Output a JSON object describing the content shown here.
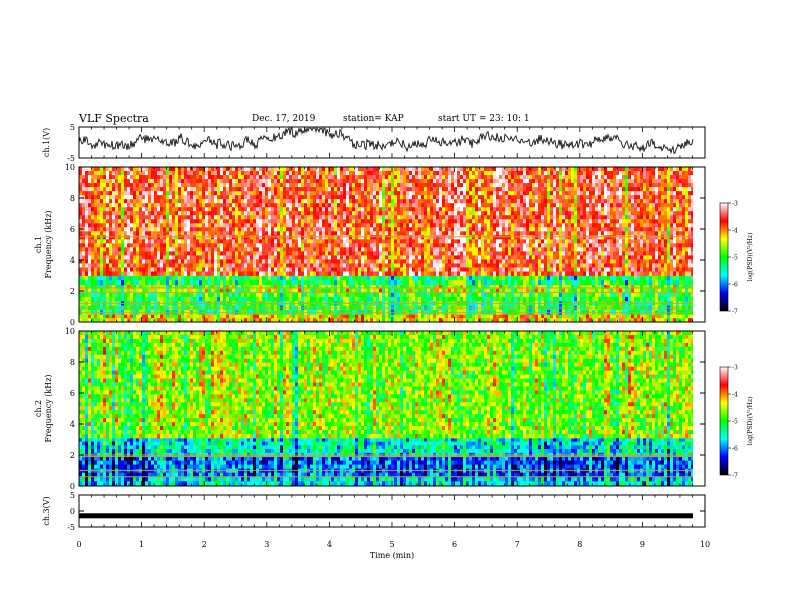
{
  "header": {
    "title": "VLF Spectra",
    "date": "Dec. 17, 2019",
    "station": "station= KAP",
    "start": "start  UT  =   23: 10: 1"
  },
  "colors": {
    "waveform": "#111111",
    "colormap": [
      "#000000",
      "#0000ff",
      "#00ffff",
      "#00ff00",
      "#ffff00",
      "#ff0000",
      "#ffffff"
    ]
  },
  "chart_data": [
    {
      "type": "line",
      "panel": "ch1-waveform",
      "ylabel": "ch.1(V)",
      "ylim": [
        -5,
        5
      ],
      "yticks": [
        "5",
        "-5"
      ],
      "xlim": [
        0,
        10
      ],
      "mean": 0.5,
      "amplitude_range": [
        -3.5,
        4.6
      ]
    },
    {
      "type": "heatmap",
      "panel": "ch1-spectrogram",
      "ylabel": "ch.1 Frequency (kHz)",
      "ylim": [
        0,
        10
      ],
      "yticks": [
        "0",
        "2",
        "4",
        "6",
        "8",
        "10"
      ],
      "xlim": [
        0,
        9.8
      ],
      "colorbar_label": "log(PSD)(V²/Hz)",
      "colorbar_range": [
        -7,
        -3
      ],
      "colorbar_ticks": [
        "-3",
        "-4",
        "-5",
        "-6",
        "-7"
      ],
      "bands": [
        {
          "from": 0,
          "to": 0.5,
          "level": -4.2
        },
        {
          "from": 0.5,
          "to": 1.9,
          "level": -5.0
        },
        {
          "from": 1.9,
          "to": 2.4,
          "level": -4.6
        },
        {
          "from": 2.4,
          "to": 3.0,
          "level": -5.1
        },
        {
          "from": 3.0,
          "to": 10,
          "level": -3.6
        }
      ],
      "lines_khz": [
        0.6,
        0.9,
        1.2,
        1.9,
        2.2,
        5.5
      ]
    },
    {
      "type": "heatmap",
      "panel": "ch2-spectrogram",
      "ylabel": "ch.2 Frequency (kHz)",
      "ylim": [
        0,
        10
      ],
      "yticks": [
        "0",
        "2",
        "4",
        "6",
        "8",
        "10"
      ],
      "xlim": [
        0,
        9.8
      ],
      "colorbar_label": "log(PSD)(V²/Hz)",
      "colorbar_range": [
        -7,
        -3
      ],
      "colorbar_ticks": [
        "-3",
        "-4",
        "-5",
        "-6",
        "-7"
      ],
      "bands": [
        {
          "from": 0,
          "to": 0.6,
          "level": -5.6
        },
        {
          "from": 0.6,
          "to": 1.9,
          "level": -6.0
        },
        {
          "from": 1.9,
          "to": 3.1,
          "level": -5.5
        },
        {
          "from": 3.1,
          "to": 10,
          "level": -4.6
        }
      ],
      "lines_khz": [
        0.6,
        1.0,
        1.9,
        2.0
      ]
    },
    {
      "type": "line",
      "panel": "ch3-waveform",
      "ylabel": "ch.3(V)",
      "ylim": [
        -5,
        5
      ],
      "yticks": [
        "5",
        "0",
        "-5"
      ],
      "xlim": [
        0,
        10
      ],
      "value": -1.5
    }
  ],
  "xaxis": {
    "label": "Time  (min)",
    "ticks": [
      "0",
      "1",
      "2",
      "3",
      "4",
      "5",
      "6",
      "7",
      "8",
      "9",
      "10"
    ]
  }
}
